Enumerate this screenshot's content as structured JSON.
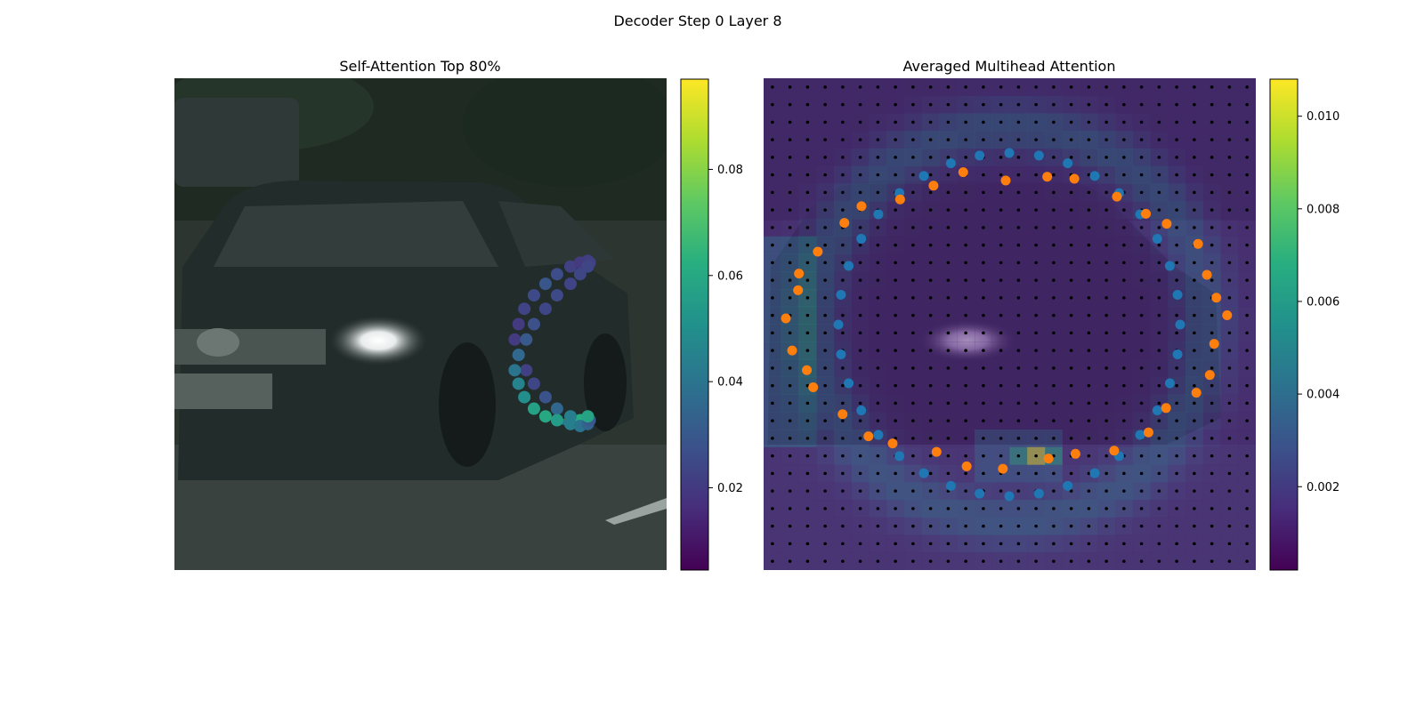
{
  "figure": {
    "suptitle": "Decoder Step 0 Layer 8"
  },
  "chart_data": [
    {
      "type": "scatter",
      "title": "Self-Attention Top 80%",
      "background": "photo: dark green station wagon with headlight on, road, foliage",
      "colormap": "viridis",
      "colorbar": {
        "ticks": [
          0.02,
          0.04,
          0.06,
          0.08
        ],
        "range": [
          0.0045,
          0.097
        ]
      },
      "highlight_segments": [
        {
          "from": 30,
          "to": 32,
          "color": "#fde725"
        },
        {
          "from": 30,
          "to": 31,
          "color": "#2a788e"
        }
      ],
      "points": {
        "x": [
          211,
          206,
          199,
          193,
          187,
          183,
          179,
          177,
          179,
          182,
          187,
          193,
          199,
          206,
          211,
          215,
          216,
          215,
          211,
          206,
          199,
          193,
          187,
          183,
          179,
          177,
          179,
          182,
          187,
          193,
          199,
          206,
          211,
          215,
          216,
          215
        ],
        "y": [
          178,
          176,
          172,
          166,
          159,
          152,
          144,
          136,
          128,
          120,
          113,
          107,
          102,
          98,
          96,
          95,
          96,
          98,
          102,
          107,
          113,
          120,
          128,
          136,
          144,
          152,
          159,
          166,
          172,
          176,
          178,
          180,
          181,
          180,
          178,
          176
        ],
        "values": [
          0.061,
          0.044,
          0.035,
          0.028,
          0.024,
          0.022,
          0.021,
          0.02,
          0.02,
          0.023,
          0.025,
          0.029,
          0.026,
          0.022,
          0.02,
          0.021,
          0.022,
          0.024,
          0.024,
          0.023,
          0.025,
          0.024,
          0.027,
          0.03,
          0.036,
          0.04,
          0.045,
          0.05,
          0.057,
          0.06,
          0.055,
          0.044,
          0.04,
          0.034,
          0.03,
          0.058
        ]
      }
    },
    {
      "type": "heatmap",
      "title": "Averaged Multihead Attention",
      "colormap": "viridis",
      "colorbar": {
        "ticks": [
          0.002,
          0.004,
          0.006,
          0.008,
          0.01
        ],
        "range": [
          0.0002,
          0.0108
        ]
      },
      "grid": {
        "cols": 28,
        "rows": 28
      },
      "peak_value": 0.0105,
      "series": [
        {
          "name": "reference points (blue)",
          "color": "#1f77b4"
        },
        {
          "name": "sampling points (orange)",
          "color": "#ff7f0e"
        }
      ]
    }
  ]
}
